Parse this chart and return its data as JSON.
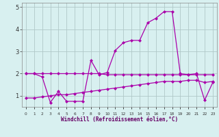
{
  "x": [
    0,
    1,
    2,
    3,
    4,
    5,
    6,
    7,
    8,
    9,
    10,
    11,
    12,
    13,
    14,
    15,
    16,
    17,
    18,
    19,
    20,
    21,
    22,
    23
  ],
  "line1": [
    2.0,
    2.0,
    1.85,
    0.7,
    1.2,
    0.75,
    0.75,
    0.75,
    2.6,
    1.95,
    2.05,
    3.05,
    3.4,
    3.5,
    3.5,
    4.3,
    4.5,
    4.8,
    4.8,
    2.0,
    1.95,
    2.0,
    0.8,
    1.6
  ],
  "line2": [
    2.0,
    2.0,
    2.0,
    2.0,
    2.0,
    2.0,
    2.0,
    2.0,
    2.0,
    2.0,
    1.95,
    1.95,
    1.95,
    1.95,
    1.95,
    1.95,
    1.95,
    1.95,
    1.95,
    1.95,
    1.95,
    1.95,
    1.95,
    1.95
  ],
  "line3": [
    0.9,
    0.9,
    0.95,
    1.0,
    1.05,
    1.05,
    1.1,
    1.15,
    1.2,
    1.25,
    1.3,
    1.35,
    1.4,
    1.45,
    1.5,
    1.55,
    1.6,
    1.65,
    1.65,
    1.65,
    1.7,
    1.7,
    1.6,
    1.65
  ],
  "color": "#aa00aa",
  "bg_color": "#d8f0f0",
  "grid_color": "#b0c8c8",
  "xlabel": "Windchill (Refroidissement éolien,°C)",
  "ylim": [
    0.5,
    5.2
  ],
  "xlim": [
    -0.5,
    23.5
  ],
  "yticks": [
    1,
    2,
    3,
    4,
    5
  ],
  "xtick_labels": [
    "0",
    "1",
    "2",
    "3",
    "4",
    "5",
    "6",
    "7",
    "8",
    "9",
    "10",
    "11",
    "12",
    "13",
    "14",
    "15",
    "16",
    "17",
    "18",
    "19",
    "20",
    "21",
    "22",
    "23"
  ]
}
